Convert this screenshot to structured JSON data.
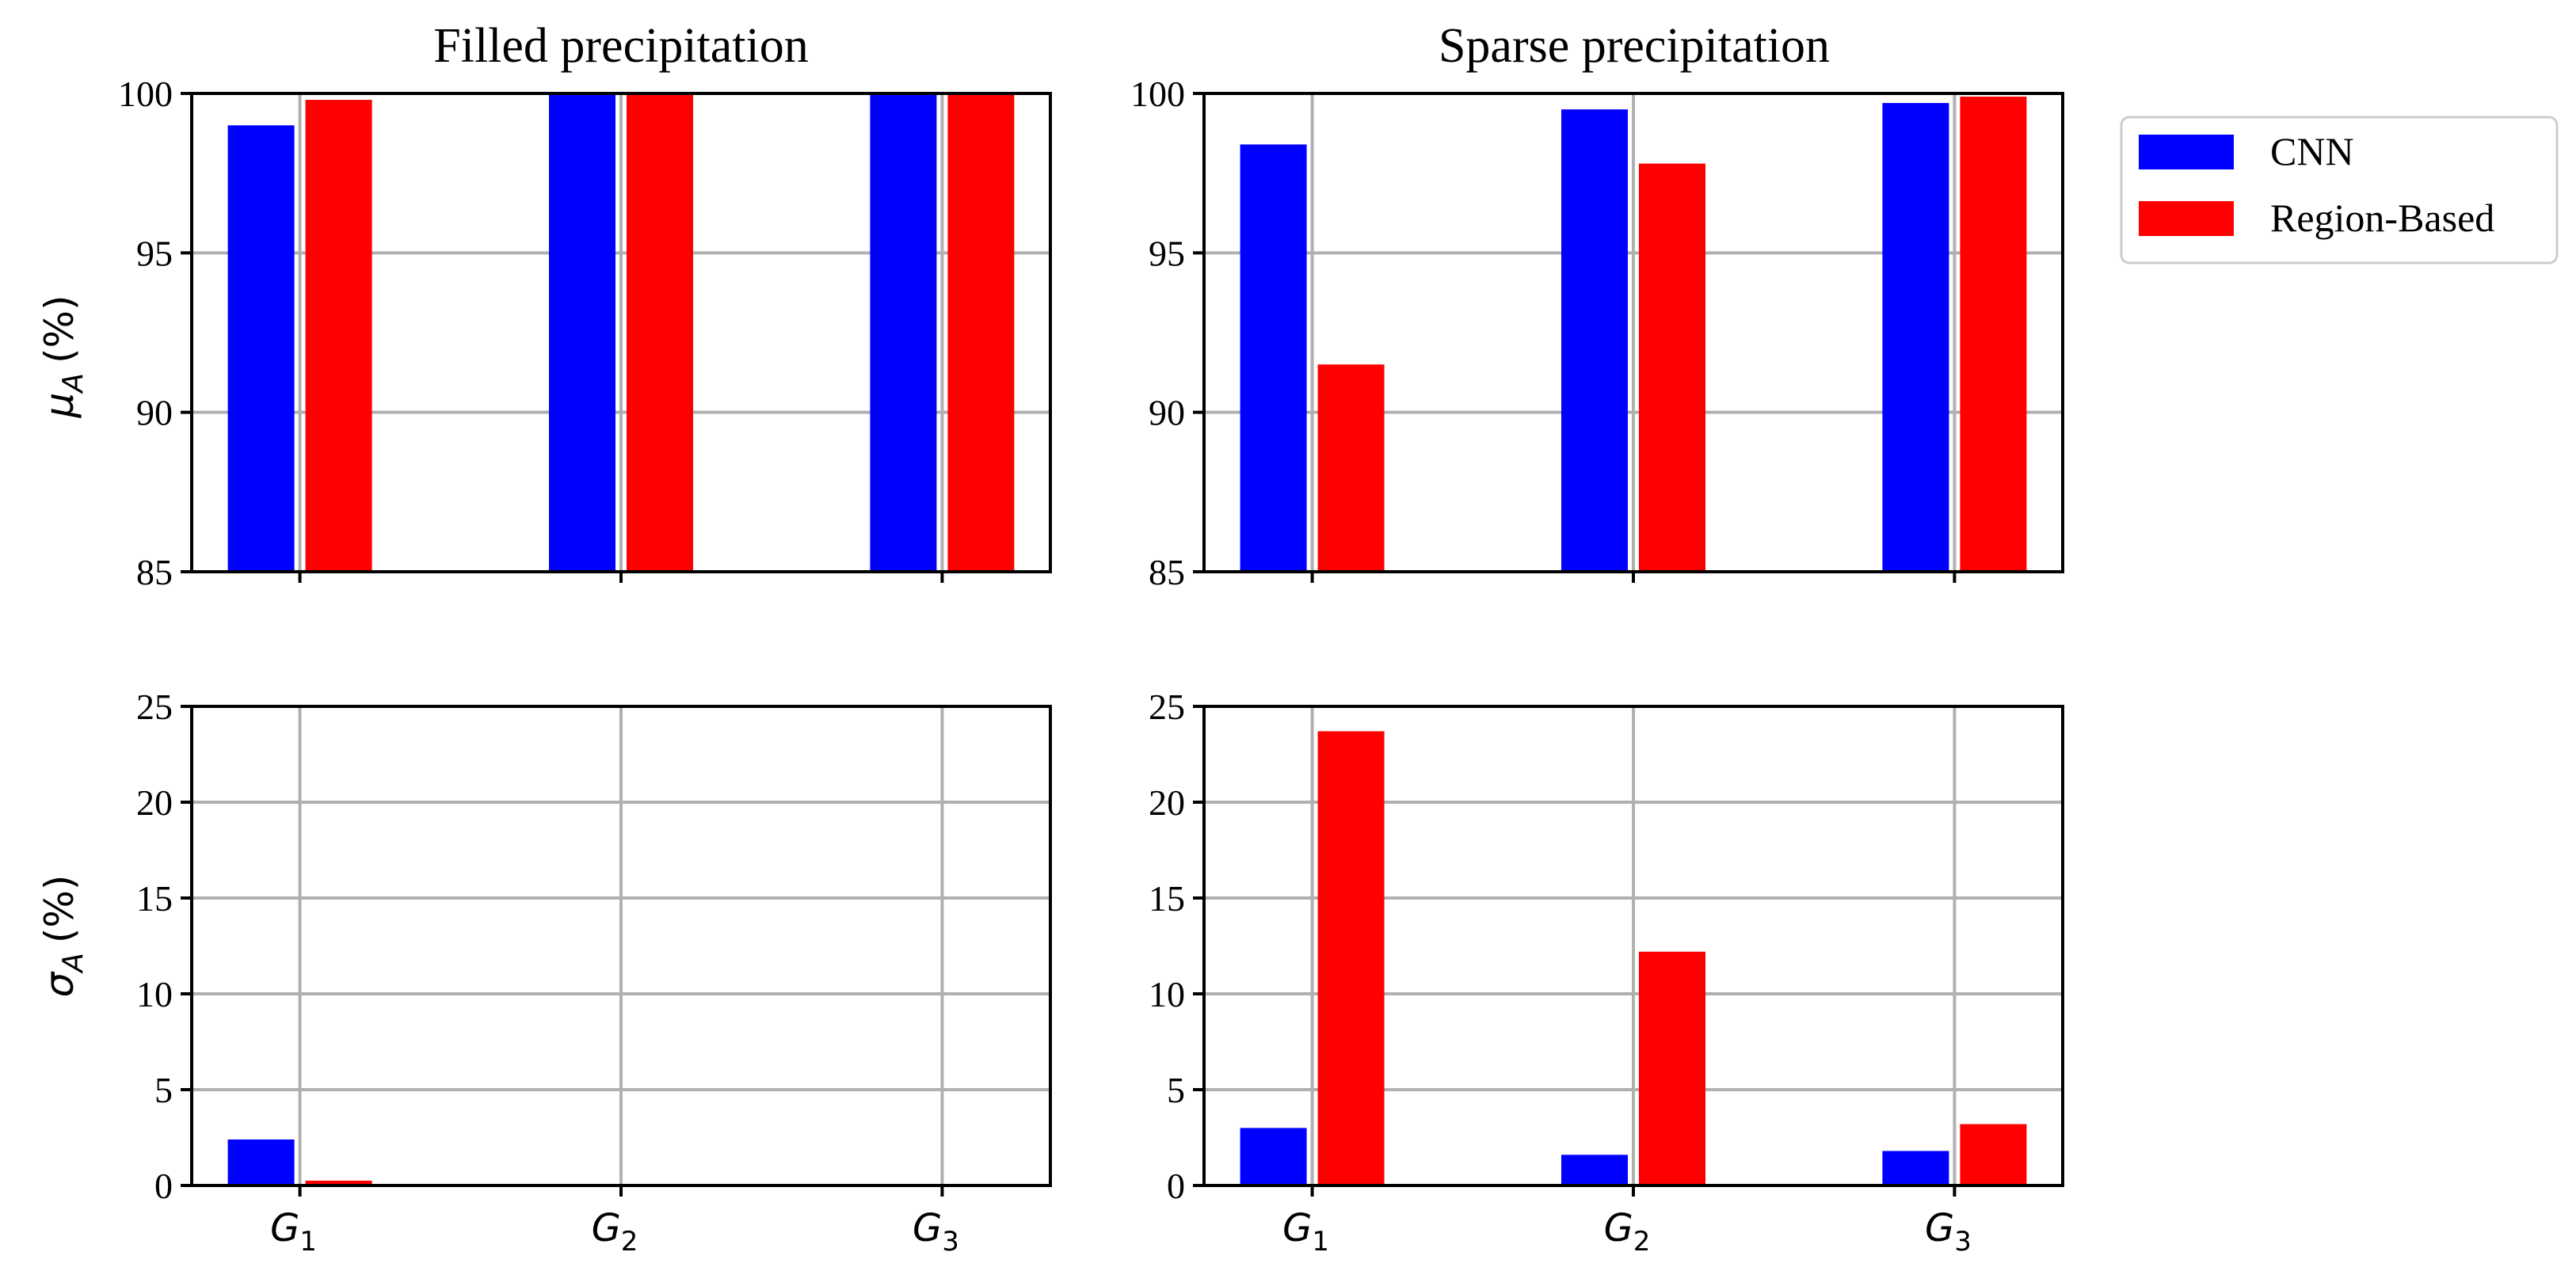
{
  "figure": {
    "row_labels": {
      "mean": {
        "symbol": "μ",
        "sub": "A",
        "unit": "(%)"
      },
      "std": {
        "symbol": "σ",
        "sub": "A",
        "unit": "(%)"
      }
    },
    "x_categories": [
      {
        "base": "G",
        "sub": "1"
      },
      {
        "base": "G",
        "sub": "2"
      },
      {
        "base": "G",
        "sub": "3"
      }
    ],
    "legend": {
      "location": "upper-right outside",
      "entries": [
        {
          "label": "CNN",
          "color": "#0000ff"
        },
        {
          "label": "Region-Based",
          "color": "#ff0000"
        }
      ]
    },
    "colors": {
      "cnn": "#0000ff",
      "region": "#ff0000",
      "grid": "#b0b0b0",
      "axis": "#000000"
    }
  },
  "chart_data": [
    {
      "type": "bar",
      "panel": "top-left",
      "title": "Filled precipitation",
      "xlabel": "",
      "ylabel": "μA (%)",
      "categories": [
        "G1",
        "G2",
        "G3"
      ],
      "ylim": [
        85,
        100
      ],
      "yticks": [
        85,
        90,
        95,
        100
      ],
      "grid": true,
      "series": [
        {
          "name": "CNN",
          "values": [
            99.0,
            99.95,
            99.95
          ]
        },
        {
          "name": "Region-Based",
          "values": [
            99.8,
            99.95,
            99.95
          ]
        }
      ]
    },
    {
      "type": "bar",
      "panel": "top-right",
      "title": "Sparse precipitation",
      "xlabel": "",
      "ylabel": "",
      "categories": [
        "G1",
        "G2",
        "G3"
      ],
      "ylim": [
        85,
        100
      ],
      "yticks": [
        85,
        90,
        95,
        100
      ],
      "grid": true,
      "series": [
        {
          "name": "CNN",
          "values": [
            98.4,
            99.5,
            99.7
          ]
        },
        {
          "name": "Region-Based",
          "values": [
            91.5,
            97.8,
            99.9
          ]
        }
      ]
    },
    {
      "type": "bar",
      "panel": "bottom-left",
      "title": "",
      "xlabel": "",
      "ylabel": "σA (%)",
      "categories": [
        "G1",
        "G2",
        "G3"
      ],
      "ylim": [
        0,
        25
      ],
      "yticks": [
        0,
        5,
        10,
        15,
        20,
        25
      ],
      "grid": true,
      "series": [
        {
          "name": "CNN",
          "values": [
            2.4,
            0.0,
            0.0
          ]
        },
        {
          "name": "Region-Based",
          "values": [
            0.25,
            0.0,
            0.0
          ]
        }
      ]
    },
    {
      "type": "bar",
      "panel": "bottom-right",
      "title": "",
      "xlabel": "",
      "ylabel": "",
      "categories": [
        "G1",
        "G2",
        "G3"
      ],
      "ylim": [
        0,
        25
      ],
      "yticks": [
        0,
        5,
        10,
        15,
        20,
        25
      ],
      "grid": true,
      "series": [
        {
          "name": "CNN",
          "values": [
            3.0,
            1.6,
            1.8
          ]
        },
        {
          "name": "Region-Based",
          "values": [
            23.7,
            12.2,
            3.2
          ]
        }
      ]
    }
  ]
}
